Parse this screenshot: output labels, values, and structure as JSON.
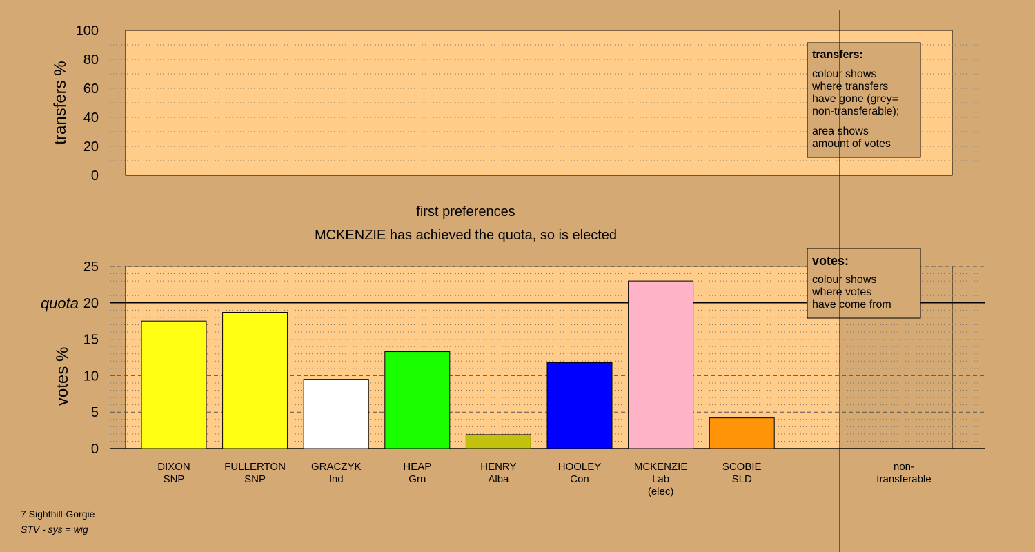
{
  "chart_data": [
    {
      "type": "bar",
      "panel": "transfers",
      "ylabel": "transfers %",
      "ylim": [
        0,
        100
      ],
      "yticks": [
        0,
        20,
        40,
        60,
        80,
        100
      ],
      "grid": true,
      "series": [],
      "legend": {
        "title": "transfers:",
        "lines1": [
          "colour shows",
          "where transfers",
          "have gone (grey=",
          "non-transferable);"
        ],
        "lines2": [
          "area shows",
          "amount of votes"
        ]
      }
    },
    {
      "type": "bar",
      "panel": "votes",
      "title": "first preferences",
      "subtitle": "MCKENZIE has achieved the quota, so is elected",
      "ylabel": "votes %",
      "ylim": [
        0,
        25
      ],
      "yticks": [
        0,
        5,
        10,
        15,
        20,
        25
      ],
      "quota": 20,
      "quota_label": "quota",
      "grid": true,
      "categories": [
        {
          "name": "DIXON",
          "party": "SNP",
          "note": ""
        },
        {
          "name": "FULLERTON",
          "party": "SNP",
          "note": ""
        },
        {
          "name": "GRACZYK",
          "party": "Ind",
          "note": ""
        },
        {
          "name": "HEAP",
          "party": "Grn",
          "note": ""
        },
        {
          "name": "HENRY",
          "party": "Alba",
          "note": ""
        },
        {
          "name": "HOOLEY",
          "party": "Con",
          "note": ""
        },
        {
          "name": "MCKENZIE",
          "party": "Lab",
          "note": "(elec)"
        },
        {
          "name": "SCOBIE",
          "party": "SLD",
          "note": ""
        }
      ],
      "values": [
        17.5,
        18.7,
        9.5,
        13.3,
        1.9,
        11.8,
        23.0,
        4.2
      ],
      "colors": [
        "#FFFF14",
        "#FFFF14",
        "#FFFFFF",
        "#1AFF00",
        "#C2C20E",
        "#0000FF",
        "#FFB3C6",
        "#FF9408"
      ],
      "nontransferable_label": [
        "non-",
        "transferable"
      ],
      "legend": {
        "title": "votes:",
        "lines": [
          "colour shows",
          "where votes",
          "have come from"
        ]
      }
    }
  ],
  "footer": {
    "line1": "7 Sighthill-Gorgie",
    "line2": "STV - sys = wig"
  },
  "colors": {
    "background": "#D4A974",
    "plot_bg": "#FFCC8A",
    "legend_bg": "#D4A974",
    "nontransferable_bg": "#D4A974"
  }
}
